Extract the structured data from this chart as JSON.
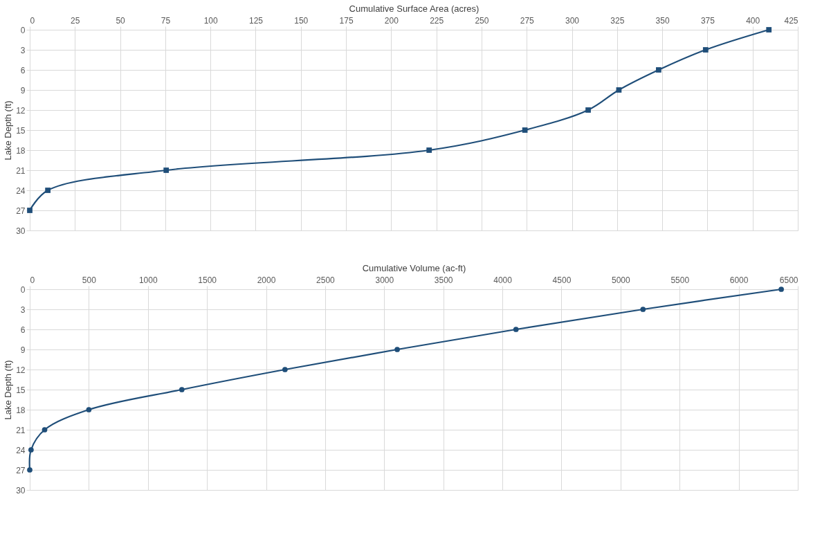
{
  "chart_data": [
    {
      "type": "line",
      "xlabel": "Cumulative Surface Area (acres)",
      "ylabel": "Lake Depth (ft)",
      "xlim": [
        0,
        425
      ],
      "xticks": [
        0,
        25,
        50,
        75,
        100,
        125,
        150,
        175,
        200,
        225,
        250,
        275,
        300,
        325,
        350,
        375,
        400,
        425
      ],
      "ylim": [
        30,
        0
      ],
      "yticks": [
        0,
        3,
        6,
        9,
        12,
        15,
        18,
        21,
        24,
        27,
        30
      ],
      "grid": true,
      "marker": "square",
      "line_style": "solid",
      "series": [
        {
          "color": "#1f4e79",
          "x": [
            409,
            374,
            348,
            326,
            309,
            274,
            221,
            75.5,
            10,
            0
          ],
          "values": [
            0,
            3,
            6,
            9,
            12,
            15,
            18,
            21,
            24,
            27
          ]
        }
      ]
    },
    {
      "type": "line",
      "xlabel": "Cumulative Volume (ac-ft)",
      "ylabel": "Lake Depth (ft)",
      "xlim": [
        0,
        6500
      ],
      "xticks": [
        0,
        500,
        1000,
        1500,
        2000,
        2500,
        3000,
        3500,
        4000,
        4500,
        5000,
        5500,
        6000,
        6500
      ],
      "ylim": [
        30,
        0
      ],
      "yticks": [
        0,
        3,
        6,
        9,
        12,
        15,
        18,
        21,
        24,
        27,
        30
      ],
      "grid": true,
      "marker": "circle",
      "line_style": "solid",
      "series": [
        {
          "color": "#1f4e79",
          "x": [
            6360,
            5190,
            4115,
            3110,
            2160,
            1287,
            500,
            126,
            11,
            0
          ],
          "values": [
            0,
            3,
            6,
            9,
            12,
            15,
            18,
            21,
            24,
            27
          ]
        }
      ]
    }
  ]
}
